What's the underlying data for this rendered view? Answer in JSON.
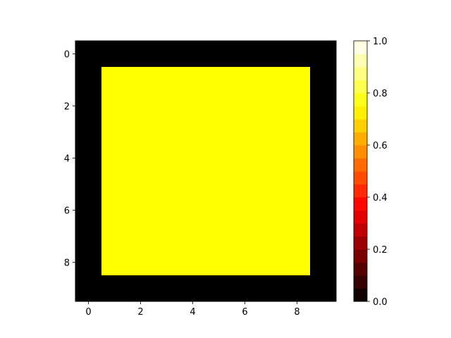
{
  "chart_data": {
    "type": "heatmap",
    "rows": 10,
    "cols": 10,
    "x_ticks": [
      "0",
      "2",
      "4",
      "6",
      "8"
    ],
    "y_ticks": [
      "0",
      "2",
      "4",
      "6",
      "8"
    ],
    "xlim": [
      -0.5,
      9.5
    ],
    "ylim": [
      9.5,
      -0.5
    ],
    "interior_value": 0.75,
    "border_value": 0.0,
    "values": [
      [
        0,
        0,
        0,
        0,
        0,
        0,
        0,
        0,
        0,
        0
      ],
      [
        0,
        0.75,
        0.75,
        0.75,
        0.75,
        0.75,
        0.75,
        0.75,
        0.75,
        0
      ],
      [
        0,
        0.75,
        0.75,
        0.75,
        0.75,
        0.75,
        0.75,
        0.75,
        0.75,
        0
      ],
      [
        0,
        0.75,
        0.75,
        0.75,
        0.75,
        0.75,
        0.75,
        0.75,
        0.75,
        0
      ],
      [
        0,
        0.75,
        0.75,
        0.75,
        0.75,
        0.75,
        0.75,
        0.75,
        0.75,
        0
      ],
      [
        0,
        0.75,
        0.75,
        0.75,
        0.75,
        0.75,
        0.75,
        0.75,
        0.75,
        0
      ],
      [
        0,
        0.75,
        0.75,
        0.75,
        0.75,
        0.75,
        0.75,
        0.75,
        0.75,
        0
      ],
      [
        0,
        0.75,
        0.75,
        0.75,
        0.75,
        0.75,
        0.75,
        0.75,
        0.75,
        0
      ],
      [
        0,
        0.75,
        0.75,
        0.75,
        0.75,
        0.75,
        0.75,
        0.75,
        0.75,
        0
      ],
      [
        0,
        0,
        0,
        0,
        0,
        0,
        0,
        0,
        0,
        0
      ]
    ],
    "colormap": "hot",
    "colorbar": {
      "range": [
        0.0,
        1.0
      ],
      "levels": 20,
      "ticks": [
        "0.0",
        "0.2",
        "0.4",
        "0.6",
        "0.8",
        "1.0"
      ]
    },
    "colors": {
      "interior": "#ffff00",
      "border": "#000000"
    }
  }
}
